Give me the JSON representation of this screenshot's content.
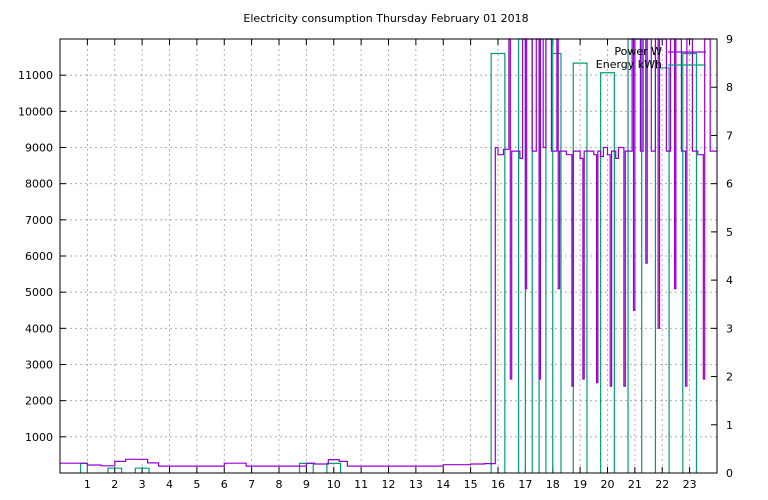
{
  "chart_data": {
    "type": "line",
    "title": "Electricity consumption Thursday February 01 2018",
    "x_ticks": [
      "1",
      "2",
      "3",
      "4",
      "5",
      "6",
      "7",
      "8",
      "9",
      "10",
      "11",
      "12",
      "13",
      "14",
      "15",
      "16",
      "17",
      "18",
      "19",
      "20",
      "21",
      "22",
      "23"
    ],
    "xlim": [
      0,
      24
    ],
    "y_ticks": [
      "1000",
      "2000",
      "3000",
      "4000",
      "5000",
      "6000",
      "7000",
      "8000",
      "9000",
      "10000",
      "11000"
    ],
    "ylim": [
      0,
      12000
    ],
    "y2_ticks": [
      "0",
      "1",
      "2",
      "3",
      "4",
      "5",
      "6",
      "7",
      "8",
      "9"
    ],
    "y2lim": [
      0,
      9
    ],
    "grid": true,
    "legend_position": "top-right",
    "colors": {
      "power": "#9400d3",
      "energy": "#009e73"
    },
    "series": [
      {
        "name": "Power W",
        "axis": "left",
        "points": [
          [
            0,
            270
          ],
          [
            1,
            270
          ],
          [
            1,
            220
          ],
          [
            1.5,
            220
          ],
          [
            1.5,
            200
          ],
          [
            2,
            200
          ],
          [
            2,
            320
          ],
          [
            2.4,
            320
          ],
          [
            2.4,
            380
          ],
          [
            3.2,
            380
          ],
          [
            3.2,
            280
          ],
          [
            3.6,
            280
          ],
          [
            3.6,
            190
          ],
          [
            6,
            190
          ],
          [
            6,
            270
          ],
          [
            6.8,
            270
          ],
          [
            6.8,
            190
          ],
          [
            9,
            190
          ],
          [
            9,
            270
          ],
          [
            9.3,
            270
          ],
          [
            9.3,
            250
          ],
          [
            9.8,
            250
          ],
          [
            9.8,
            370
          ],
          [
            10.2,
            370
          ],
          [
            10.2,
            320
          ],
          [
            10.5,
            320
          ],
          [
            10.5,
            190
          ],
          [
            14,
            190
          ],
          [
            14,
            230
          ],
          [
            15,
            230
          ],
          [
            15,
            250
          ],
          [
            15.5,
            250
          ],
          [
            15.5,
            260
          ],
          [
            15.9,
            260
          ],
          [
            15.9,
            9000
          ],
          [
            16,
            9000
          ],
          [
            16,
            8800
          ],
          [
            16.2,
            8800
          ],
          [
            16.2,
            8950
          ],
          [
            16.4,
            8950
          ],
          [
            16.4,
            12000
          ],
          [
            16.45,
            12000
          ],
          [
            16.45,
            2600
          ],
          [
            16.5,
            2600
          ],
          [
            16.5,
            8900
          ],
          [
            16.8,
            8900
          ],
          [
            16.8,
            8700
          ],
          [
            16.9,
            8700
          ],
          [
            16.9,
            12000
          ],
          [
            17,
            12000
          ],
          [
            17,
            5100
          ],
          [
            17.05,
            5100
          ],
          [
            17.05,
            12000
          ],
          [
            17.25,
            12000
          ],
          [
            17.25,
            8900
          ],
          [
            17.4,
            8900
          ],
          [
            17.4,
            12000
          ],
          [
            17.5,
            12000
          ],
          [
            17.5,
            2600
          ],
          [
            17.55,
            2600
          ],
          [
            17.55,
            12000
          ],
          [
            17.65,
            12000
          ],
          [
            17.65,
            9000
          ],
          [
            17.75,
            9000
          ],
          [
            17.75,
            12000
          ],
          [
            17.95,
            12000
          ],
          [
            17.95,
            8900
          ],
          [
            18.15,
            8900
          ],
          [
            18.15,
            12000
          ],
          [
            18.2,
            12000
          ],
          [
            18.2,
            5100
          ],
          [
            18.25,
            5100
          ],
          [
            18.25,
            8900
          ],
          [
            18.5,
            8900
          ],
          [
            18.5,
            8800
          ],
          [
            18.7,
            8800
          ],
          [
            18.7,
            2400
          ],
          [
            18.75,
            2400
          ],
          [
            18.75,
            8900
          ],
          [
            19.0,
            8900
          ],
          [
            19.0,
            8700
          ],
          [
            19.1,
            8700
          ],
          [
            19.1,
            2600
          ],
          [
            19.15,
            2600
          ],
          [
            19.15,
            8900
          ],
          [
            19.5,
            8900
          ],
          [
            19.5,
            8800
          ],
          [
            19.6,
            8800
          ],
          [
            19.6,
            2500
          ],
          [
            19.65,
            2500
          ],
          [
            19.65,
            8900
          ],
          [
            19.75,
            8900
          ],
          [
            19.75,
            8750
          ],
          [
            19.85,
            8750
          ],
          [
            19.85,
            9000
          ],
          [
            20.0,
            9000
          ],
          [
            20.0,
            8800
          ],
          [
            20.1,
            8800
          ],
          [
            20.1,
            2400
          ],
          [
            20.15,
            2400
          ],
          [
            20.15,
            8900
          ],
          [
            20.3,
            8900
          ],
          [
            20.3,
            8700
          ],
          [
            20.4,
            8700
          ],
          [
            20.4,
            9000
          ],
          [
            20.6,
            9000
          ],
          [
            20.6,
            2400
          ],
          [
            20.65,
            2400
          ],
          [
            20.65,
            8900
          ],
          [
            20.9,
            8900
          ],
          [
            20.9,
            12000
          ],
          [
            20.95,
            12000
          ],
          [
            20.95,
            4500
          ],
          [
            21.0,
            4500
          ],
          [
            21.0,
            12000
          ],
          [
            21.2,
            12000
          ],
          [
            21.2,
            8900
          ],
          [
            21.3,
            8900
          ],
          [
            21.3,
            12000
          ],
          [
            21.4,
            12000
          ],
          [
            21.4,
            5800
          ],
          [
            21.45,
            5800
          ],
          [
            21.45,
            12000
          ],
          [
            21.6,
            12000
          ],
          [
            21.6,
            8900
          ],
          [
            21.75,
            8900
          ],
          [
            21.75,
            12000
          ],
          [
            21.85,
            12000
          ],
          [
            21.85,
            4000
          ],
          [
            21.9,
            4000
          ],
          [
            21.9,
            12000
          ],
          [
            22.15,
            12000
          ],
          [
            22.15,
            8900
          ],
          [
            22.3,
            8900
          ],
          [
            22.3,
            12000
          ],
          [
            22.45,
            12000
          ],
          [
            22.45,
            5100
          ],
          [
            22.5,
            5100
          ],
          [
            22.5,
            12000
          ],
          [
            22.7,
            12000
          ],
          [
            22.7,
            8900
          ],
          [
            22.85,
            8900
          ],
          [
            22.85,
            2400
          ],
          [
            22.9,
            2400
          ],
          [
            22.9,
            12000
          ],
          [
            23.1,
            12000
          ],
          [
            23.1,
            8900
          ],
          [
            23.3,
            8900
          ],
          [
            23.3,
            8800
          ],
          [
            23.5,
            8800
          ],
          [
            23.5,
            2600
          ],
          [
            23.55,
            2600
          ],
          [
            23.55,
            12000
          ],
          [
            23.75,
            12000
          ],
          [
            23.75,
            8900
          ],
          [
            24,
            8900
          ]
        ]
      },
      {
        "name": "Energy kWh",
        "axis": "right",
        "segments": [
          [
            0.75,
            1.0,
            0.2
          ],
          [
            1.75,
            2.25,
            0.1
          ],
          [
            2.75,
            3.25,
            0.1
          ],
          [
            8.75,
            9.25,
            0.2
          ],
          [
            9.75,
            10.25,
            0.2
          ],
          [
            15.75,
            16.25,
            8.7
          ],
          [
            16.75,
            17.0,
            9
          ],
          [
            17.25,
            17.5,
            9
          ],
          [
            17.75,
            18.0,
            9
          ],
          [
            18.0,
            18.3,
            8.7
          ],
          [
            18.75,
            19.25,
            8.5
          ],
          [
            19.75,
            20.25,
            8.3
          ],
          [
            20.75,
            21.25,
            9
          ],
          [
            21.75,
            22.25,
            8.4
          ],
          [
            22.75,
            23.25,
            8.7
          ]
        ]
      }
    ]
  }
}
